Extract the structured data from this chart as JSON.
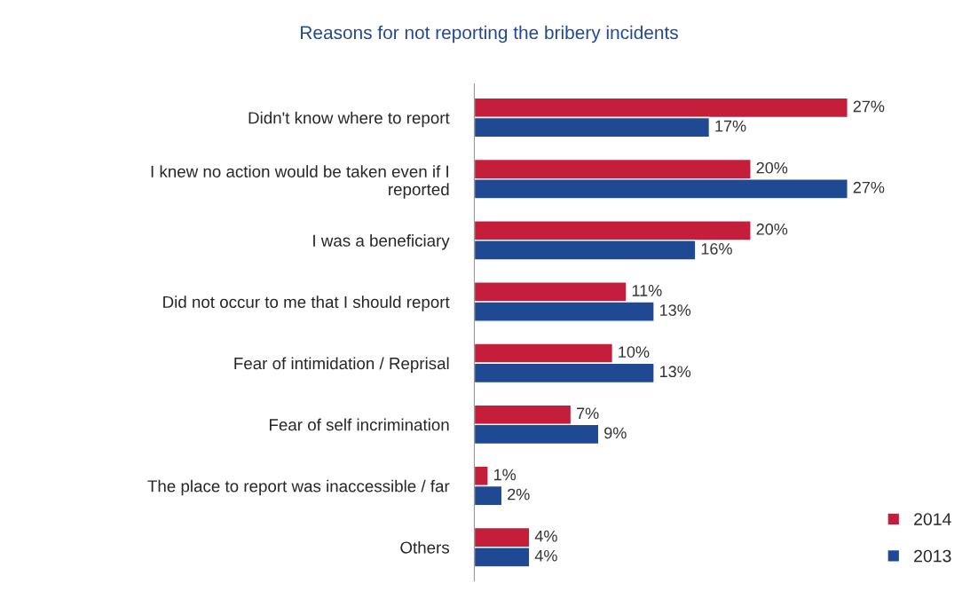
{
  "chart_data": {
    "type": "bar",
    "orientation": "horizontal",
    "title": "Reasons for not reporting the bribery incidents",
    "categories": [
      "Didn't know where to report",
      "I knew no action would be taken even if I\nreported",
      "I was a beneficiary",
      "Did not occur to me that I should report",
      "Fear of intimidation / Reprisal",
      "Fear of self incrimination",
      "The place to report was inaccessible / far",
      "Others"
    ],
    "series": [
      {
        "name": "2014",
        "color": "#c41e3a",
        "values": [
          27,
          20,
          20,
          11,
          10,
          7,
          1,
          4
        ],
        "value_labels": [
          "27%",
          "20%",
          "20%",
          "11%",
          "10%",
          "7%",
          "1%",
          "4%"
        ]
      },
      {
        "name": "2013",
        "color": "#1f4a93",
        "values": [
          17,
          27,
          16,
          13,
          13,
          9,
          2,
          4
        ],
        "value_labels": [
          "17%",
          "27%",
          "16%",
          "13%",
          "13%",
          "9%",
          "2%",
          "4%"
        ]
      }
    ],
    "relative": false,
    "legend": "bottom right",
    "grid": false
  }
}
